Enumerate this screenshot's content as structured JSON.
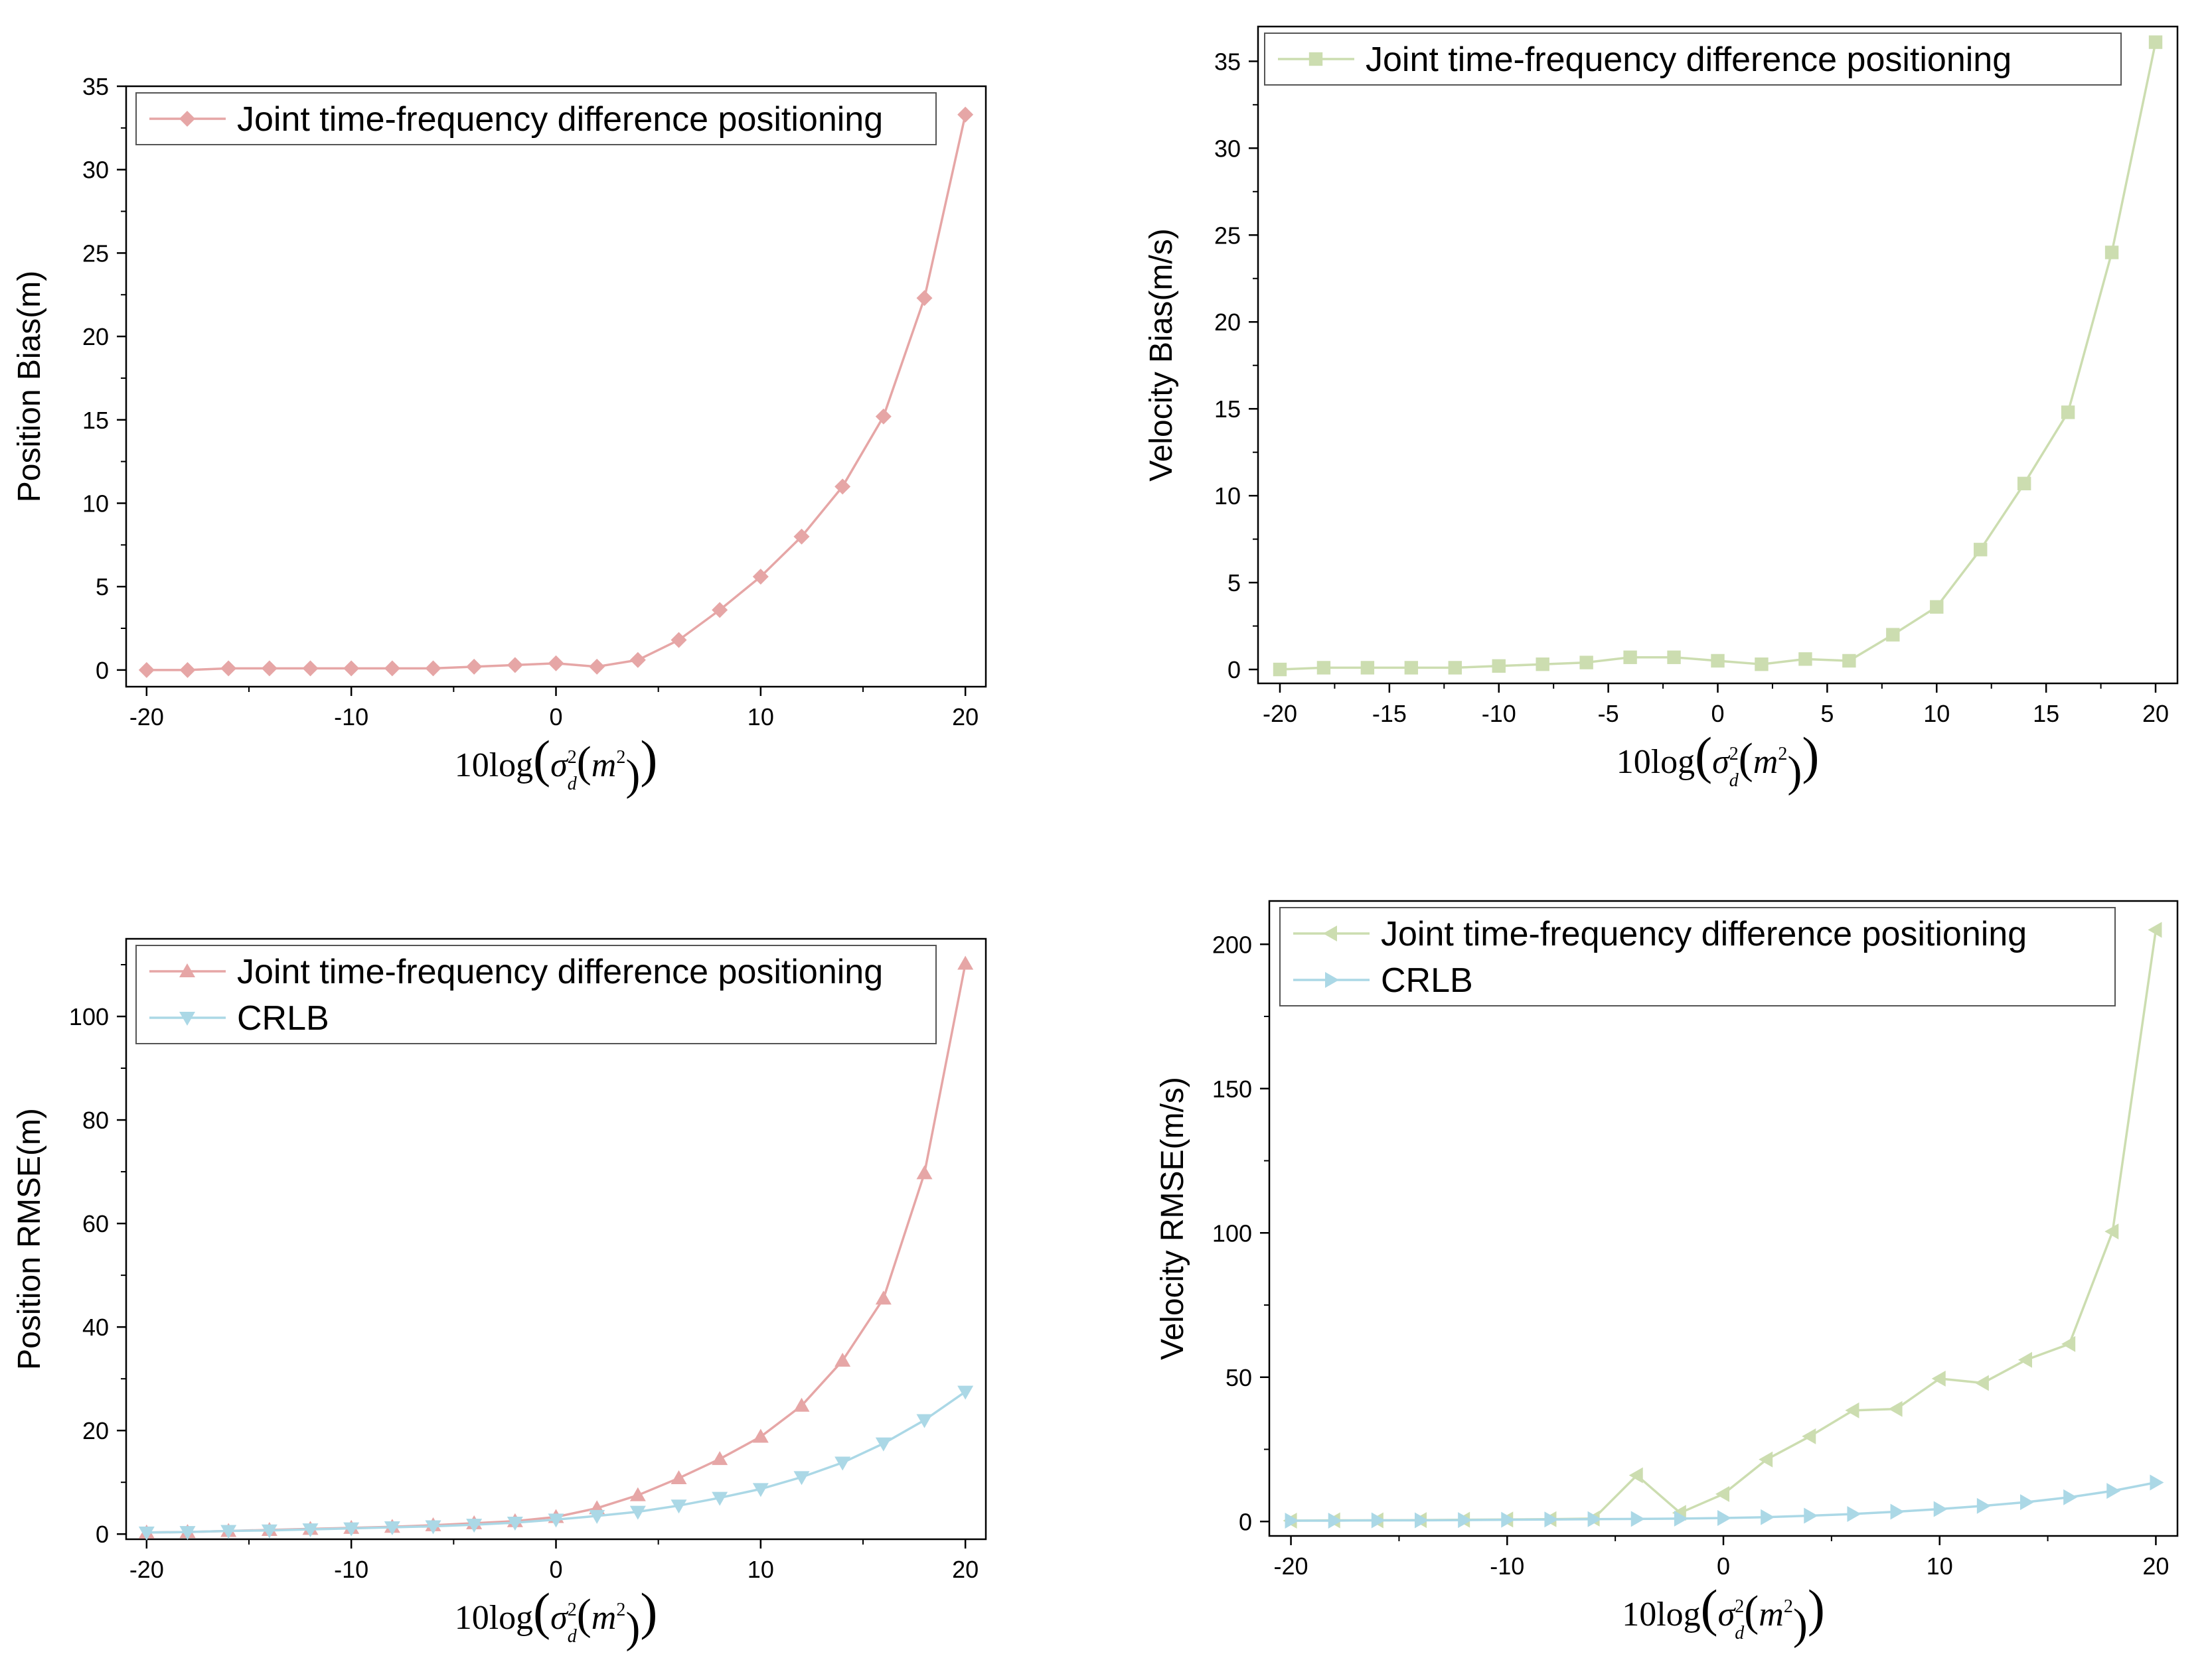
{
  "colors": {
    "joint_pink": "#E6A6A6",
    "joint_green": "#CCDDB0",
    "crlb_blue": "#ABD8E6",
    "axis": "#000000"
  },
  "chart_data": [
    {
      "id": "position-bias",
      "type": "line",
      "ylabel": "Position Bias(m)",
      "xlabel": "10log(σ_d^2(m^2))",
      "xlim": [
        -21,
        21
      ],
      "ylim": [
        -1,
        35
      ],
      "xticks": [
        -20,
        -10,
        0,
        10,
        20
      ],
      "yticks": [
        0,
        5,
        10,
        15,
        20,
        25,
        30,
        35
      ],
      "legend_position": "top-left",
      "series": [
        {
          "name": "Joint time-frequency difference positioning",
          "marker": "diamond",
          "color": "#E6A6A6",
          "x": [
            -20,
            -18,
            -16,
            -14,
            -12,
            -10,
            -8,
            -6,
            -4,
            -2,
            0,
            2,
            4,
            6,
            8,
            10,
            12,
            14,
            16,
            18,
            20
          ],
          "y": [
            0,
            0,
            0.1,
            0.1,
            0.1,
            0.1,
            0.1,
            0.1,
            0.2,
            0.3,
            0.4,
            0.2,
            0.6,
            1.8,
            3.6,
            5.6,
            8.0,
            11.0,
            15.2,
            22.3,
            33.3
          ]
        }
      ]
    },
    {
      "id": "velocity-bias",
      "type": "line",
      "ylabel": "Velocity Bias(m/s)",
      "xlabel": "10log(σ_d^2(m^2))",
      "xlim": [
        -21,
        21
      ],
      "ylim": [
        -0.8,
        37
      ],
      "xticks": [
        -20,
        -15,
        -10,
        -5,
        0,
        5,
        10,
        15,
        20
      ],
      "yticks": [
        0,
        5,
        10,
        15,
        20,
        25,
        30,
        35
      ],
      "legend_position": "top-left",
      "series": [
        {
          "name": "Joint time-frequency difference positioning",
          "marker": "square",
          "color": "#CCDDB0",
          "x": [
            -20,
            -18,
            -16,
            -14,
            -12,
            -10,
            -8,
            -6,
            -4,
            -2,
            0,
            2,
            4,
            6,
            8,
            10,
            12,
            14,
            16,
            18,
            20
          ],
          "y": [
            0,
            0.1,
            0.1,
            0.1,
            0.1,
            0.2,
            0.3,
            0.4,
            0.7,
            0.7,
            0.5,
            0.3,
            0.6,
            0.5,
            2.0,
            3.6,
            6.9,
            10.7,
            14.8,
            24.0,
            36.1
          ]
        }
      ]
    },
    {
      "id": "position-rmse",
      "type": "line",
      "ylabel": "Position RMSE(m)",
      "xlabel": "10log(σ_d^2(m^2))",
      "xlim": [
        -21,
        21
      ],
      "ylim": [
        -1,
        115
      ],
      "xticks": [
        -20,
        -10,
        0,
        10,
        20
      ],
      "yticks": [
        0,
        20,
        40,
        60,
        80,
        100
      ],
      "legend_position": "top-left",
      "series": [
        {
          "name": "Joint time-frequency difference positioning",
          "marker": "triangle-up",
          "color": "#E6A6A6",
          "x": [
            -20,
            -18,
            -16,
            -14,
            -12,
            -10,
            -8,
            -6,
            -4,
            -2,
            0,
            2,
            4,
            6,
            8,
            10,
            12,
            14,
            16,
            18,
            20
          ],
          "y": [
            0.3,
            0.4,
            0.6,
            0.8,
            1.0,
            1.2,
            1.4,
            1.7,
            2.1,
            2.5,
            3.3,
            5.0,
            7.5,
            10.8,
            14.5,
            18.8,
            24.8,
            33.5,
            45.5,
            69.7,
            110.2
          ]
        },
        {
          "name": "CRLB",
          "marker": "triangle-down",
          "color": "#ABD8E6",
          "x": [
            -20,
            -18,
            -16,
            -14,
            -12,
            -10,
            -8,
            -6,
            -4,
            -2,
            0,
            2,
            4,
            6,
            8,
            10,
            12,
            14,
            16,
            18,
            20
          ],
          "y": [
            0.3,
            0.4,
            0.6,
            0.7,
            0.9,
            1.1,
            1.3,
            1.5,
            1.8,
            2.2,
            2.8,
            3.5,
            4.3,
            5.5,
            7.0,
            8.7,
            11.0,
            13.8,
            17.5,
            22.0,
            27.5
          ]
        }
      ]
    },
    {
      "id": "velocity-rmse",
      "type": "line",
      "ylabel": "Velocity RMSE(m/s)",
      "xlabel": "10log(σ_d^2(m^2))",
      "xlim": [
        -21,
        21
      ],
      "ylim": [
        -5,
        215
      ],
      "xticks": [
        -20,
        -10,
        0,
        10,
        20
      ],
      "yticks": [
        0,
        50,
        100,
        150,
        200
      ],
      "legend_position": "top-left",
      "series": [
        {
          "name": "Joint time-frequency difference positioning",
          "marker": "triangle-left",
          "color": "#CCDDB0",
          "x": [
            -20,
            -18,
            -16,
            -14,
            -12,
            -10,
            -8,
            -6,
            -4,
            -2,
            0,
            2,
            4,
            6,
            8,
            10,
            12,
            14,
            16,
            18,
            20
          ],
          "y": [
            0.3,
            0.4,
            0.4,
            0.5,
            0.6,
            0.7,
            0.8,
            1.0,
            16.0,
            3.0,
            9.5,
            21.5,
            29.5,
            38.5,
            39.0,
            49.5,
            48.0,
            56.0,
            61.5,
            100.5,
            205.0
          ]
        },
        {
          "name": "CRLB",
          "marker": "triangle-right",
          "color": "#ABD8E6",
          "x": [
            -20,
            -18,
            -16,
            -14,
            -12,
            -10,
            -8,
            -6,
            -4,
            -2,
            0,
            2,
            4,
            6,
            8,
            10,
            12,
            14,
            16,
            18,
            20
          ],
          "y": [
            0.3,
            0.3,
            0.4,
            0.4,
            0.5,
            0.6,
            0.7,
            0.8,
            0.9,
            1.0,
            1.2,
            1.5,
            2.0,
            2.6,
            3.4,
            4.3,
            5.4,
            6.7,
            8.4,
            10.6,
            13.5
          ]
        }
      ]
    }
  ]
}
